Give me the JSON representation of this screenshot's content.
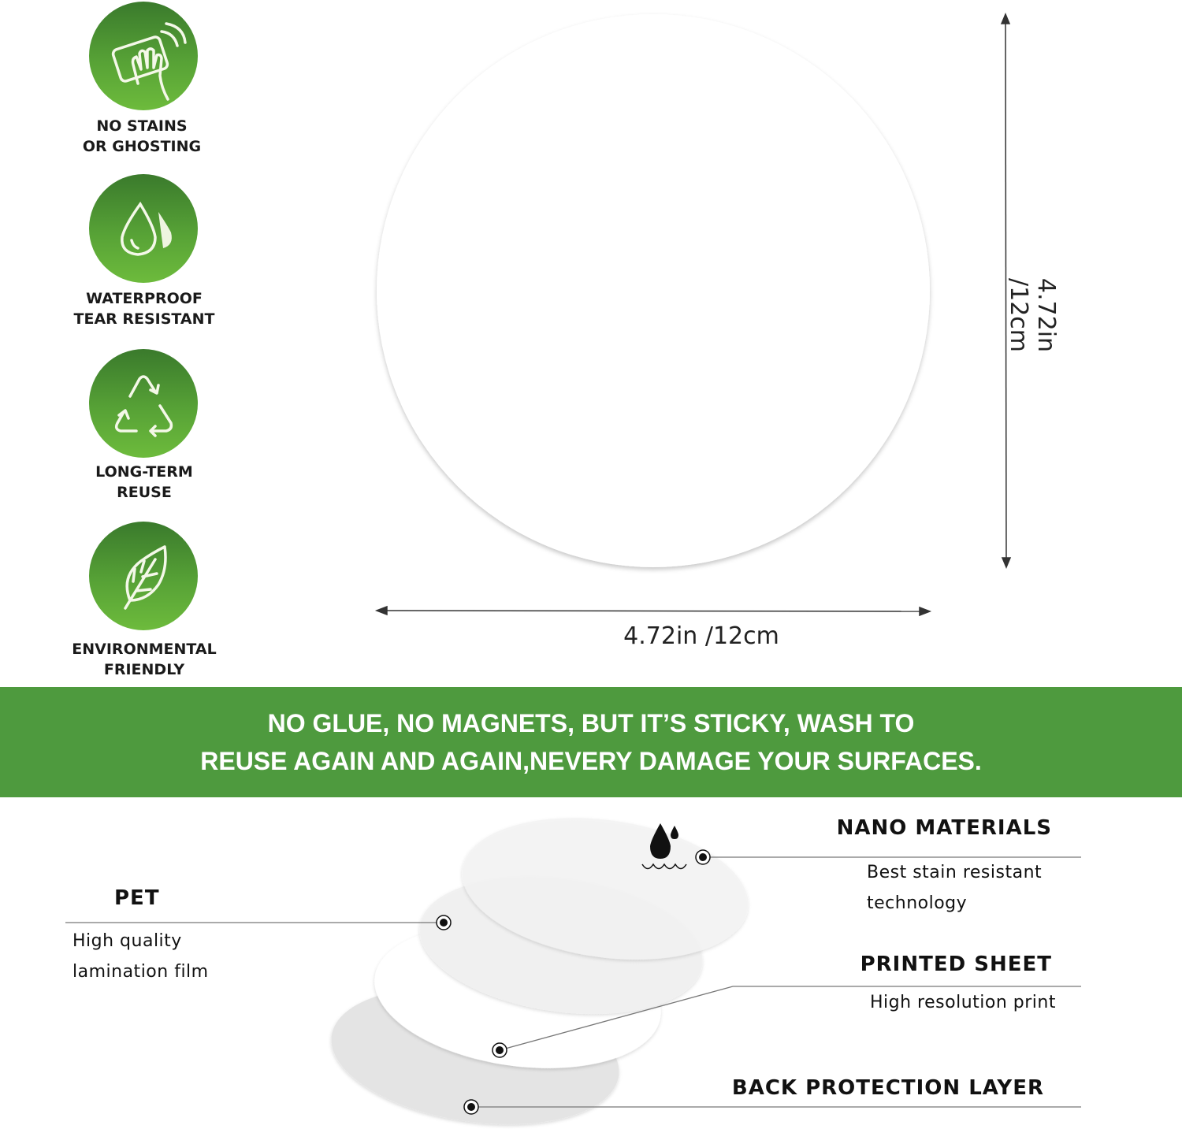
{
  "features": [
    {
      "icon": "hand-wiping-icon",
      "line1": "NO STAINS",
      "line2": "OR GHOSTING"
    },
    {
      "icon": "water-drops-icon",
      "line1": "WATERPROOF",
      "line2": "TEAR RESISTANT"
    },
    {
      "icon": "recycle-icon",
      "line1": "LONG-TERM",
      "line2": "REUSE"
    },
    {
      "icon": "leaf-icon",
      "line1": "ENVIRONMENTAL",
      "line2": "FRIENDLY"
    }
  ],
  "dimensions": {
    "width": "4.72in /12cm",
    "height": "4.72in /12cm"
  },
  "banner": {
    "line1": "NO GLUE, NO MAGNETS, BUT IT’S STICKY, WASH TO",
    "line2": "REUSE AGAIN AND AGAIN,NEVERY DAMAGE YOUR SURFACES."
  },
  "layers": {
    "nano": {
      "title": "NANO MATERIALS",
      "desc1": "Best stain resistant",
      "desc2": "technology"
    },
    "pet": {
      "title": "PET",
      "desc1": "High quality",
      "desc2": "lamination film"
    },
    "printed": {
      "title": "PRINTED SHEET",
      "desc1": "High resolution print"
    },
    "back": {
      "title": "BACK PROTECTION LAYER"
    }
  },
  "colors": {
    "brand_green": "#4e9a3e",
    "icon_green_dark": "#3a7a2c",
    "icon_green_light": "#6dbb3c"
  }
}
